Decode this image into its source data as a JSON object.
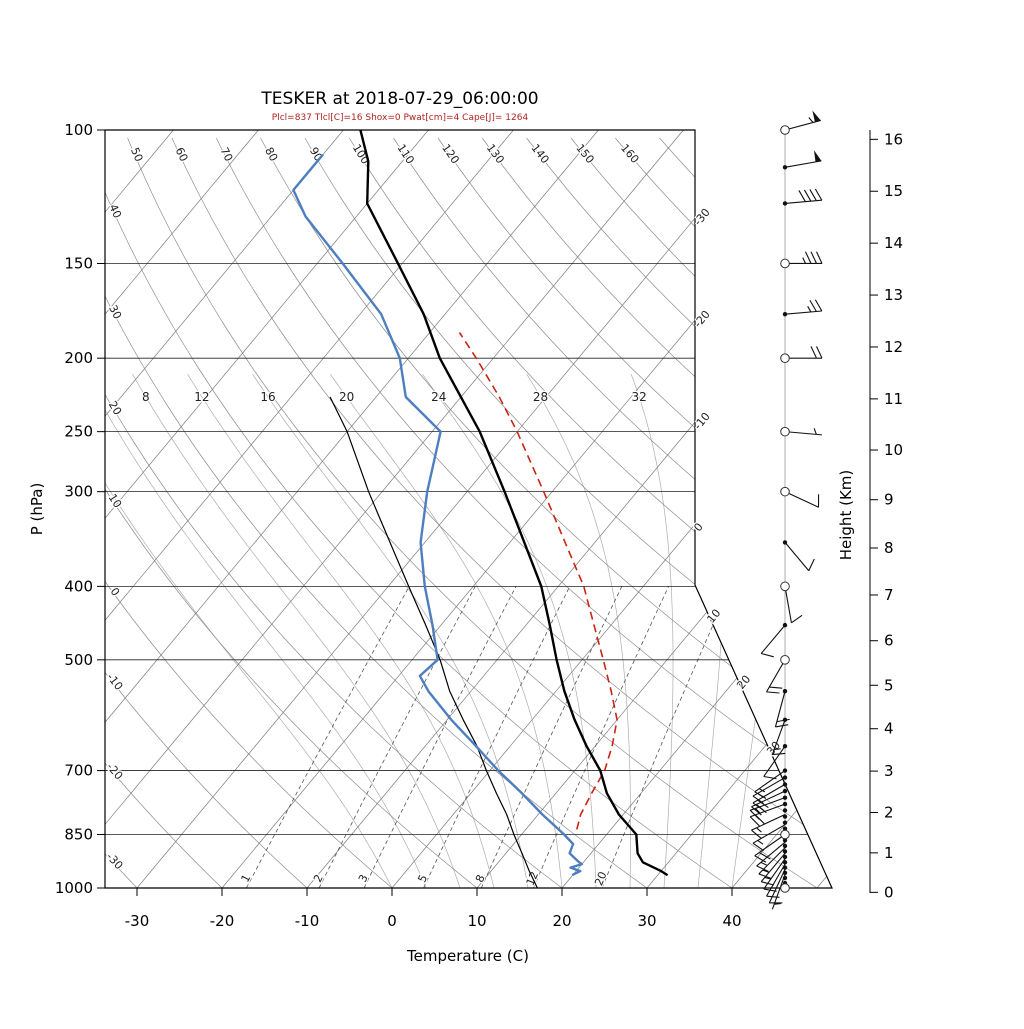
{
  "chart_data": {
    "type": "skewt-logp",
    "title": "TESKER at 2018-07-29_06:00:00",
    "subtitle": "Plcl=837 Tlcl[C]=16 Shox=0 Pwat[cm]=4 Cape[J]= 1264",
    "xlabel": "Temperature (C)",
    "ylabel": "P (hPa)",
    "y2label": "Height (Km)",
    "pressure_ticks": [
      100,
      150,
      200,
      250,
      300,
      400,
      500,
      700,
      850,
      1000
    ],
    "temperature_ticks": [
      -30,
      -20,
      -10,
      0,
      10,
      20,
      30,
      40
    ],
    "height_ticks": [
      0,
      1,
      2,
      3,
      4,
      5,
      6,
      7,
      8,
      9,
      10,
      11,
      12,
      13,
      14,
      15,
      16
    ],
    "background": {
      "isotherms": {
        "min": -110,
        "max": 50,
        "step": 10,
        "right_labels": [
          -30,
          -20,
          -10,
          0,
          10,
          20,
          30
        ]
      },
      "dry_adiabats": {
        "min": -30,
        "max": 180,
        "step": 10,
        "top_labels": [
          50,
          60,
          70,
          80,
          90,
          100,
          110,
          120,
          130,
          140,
          150,
          160
        ],
        "left_labels": [
          40,
          30,
          20,
          10,
          0,
          -10,
          -20,
          -30
        ]
      },
      "moist_adiabats": {
        "values": [
          0,
          4,
          8,
          12,
          16,
          20,
          24,
          28,
          32,
          36,
          40
        ],
        "labels": [
          8,
          12,
          16,
          20,
          24,
          28,
          32
        ],
        "label_pressure": 225
      },
      "mixing_ratio": {
        "values": [
          1,
          2,
          3,
          5,
          8,
          12,
          20
        ],
        "label_pressure": 985
      }
    },
    "profiles": {
      "temperature": [
        [
          960,
          31
        ],
        [
          950,
          30
        ],
        [
          925,
          27
        ],
        [
          900,
          25.5
        ],
        [
          850,
          23.5
        ],
        [
          800,
          19.5
        ],
        [
          750,
          16
        ],
        [
          700,
          13
        ],
        [
          650,
          9
        ],
        [
          600,
          5
        ],
        [
          550,
          1
        ],
        [
          500,
          -3
        ],
        [
          450,
          -7.2
        ],
        [
          400,
          -12
        ],
        [
          350,
          -18.3
        ],
        [
          300,
          -25.6
        ],
        [
          250,
          -34.4
        ],
        [
          200,
          -46.3
        ],
        [
          175,
          -52.5
        ],
        [
          150,
          -60.5
        ],
        [
          125,
          -70
        ],
        [
          110,
          -74
        ],
        [
          100,
          -78
        ]
      ],
      "dewpoint": [
        [
          960,
          20
        ],
        [
          950,
          20.5
        ],
        [
          940,
          19
        ],
        [
          930,
          20
        ],
        [
          925,
          19.5
        ],
        [
          900,
          17.5
        ],
        [
          875,
          17
        ],
        [
          850,
          15
        ],
        [
          800,
          10.5
        ],
        [
          750,
          6
        ],
        [
          700,
          1
        ],
        [
          650,
          -4
        ],
        [
          600,
          -9.5
        ],
        [
          550,
          -15
        ],
        [
          525,
          -17.5
        ],
        [
          500,
          -17
        ],
        [
          450,
          -21
        ],
        [
          400,
          -25.7
        ],
        [
          350,
          -30.5
        ],
        [
          300,
          -34.7
        ],
        [
          250,
          -39
        ],
        [
          225,
          -46.5
        ],
        [
          200,
          -51
        ],
        [
          175,
          -57.5
        ],
        [
          150,
          -67
        ],
        [
          130,
          -76
        ],
        [
          120,
          -80
        ],
        [
          108,
          -80
        ]
      ],
      "parcel": [
        [
          837,
          16
        ],
        [
          800,
          15
        ],
        [
          750,
          14.2
        ],
        [
          700,
          13.5
        ],
        [
          650,
          12
        ],
        [
          600,
          10
        ],
        [
          550,
          6.5
        ],
        [
          500,
          2.5
        ],
        [
          450,
          -2
        ],
        [
          400,
          -7
        ],
        [
          350,
          -13.5
        ],
        [
          300,
          -21
        ],
        [
          250,
          -30
        ],
        [
          225,
          -35.5
        ],
        [
          200,
          -42
        ],
        [
          185,
          -46.5
        ]
      ],
      "parcel_moist_adiabat": [
        [
          1000,
          17.1
        ],
        [
          950,
          14.5
        ],
        [
          900,
          11.9
        ],
        [
          850,
          9.1
        ],
        [
          800,
          6.3
        ],
        [
          750,
          3.0
        ],
        [
          700,
          -0.4
        ],
        [
          650,
          -3.9
        ],
        [
          600,
          -8.1
        ],
        [
          550,
          -12.5
        ],
        [
          500,
          -16.7
        ],
        [
          450,
          -21.8
        ],
        [
          400,
          -27.6
        ],
        [
          350,
          -34.1
        ],
        [
          300,
          -41.6
        ],
        [
          250,
          -50
        ],
        [
          225,
          -55.4
        ]
      ]
    },
    "wind": {
      "barbs": [
        [
          960,
          200,
          5
        ],
        [
          945,
          205,
          8
        ],
        [
          930,
          210,
          10
        ],
        [
          915,
          215,
          12
        ],
        [
          900,
          220,
          15
        ],
        [
          885,
          225,
          15
        ],
        [
          870,
          230,
          15
        ],
        [
          850,
          235,
          18
        ],
        [
          825,
          240,
          15
        ],
        [
          800,
          245,
          15
        ],
        [
          775,
          250,
          18
        ],
        [
          760,
          250,
          15
        ],
        [
          745,
          245,
          20
        ],
        [
          730,
          240,
          18
        ],
        [
          715,
          240,
          15
        ],
        [
          700,
          235,
          15
        ],
        [
          650,
          215,
          12
        ],
        [
          600,
          200,
          15
        ],
        [
          550,
          195,
          18
        ],
        [
          500,
          210,
          20
        ],
        [
          450,
          220,
          12
        ],
        [
          400,
          170,
          10
        ],
        [
          350,
          140,
          8
        ],
        [
          300,
          115,
          10
        ],
        [
          250,
          95,
          5
        ],
        [
          200,
          90,
          18
        ],
        [
          175,
          85,
          25
        ],
        [
          150,
          90,
          35
        ],
        [
          125,
          85,
          40
        ],
        [
          112,
          80,
          50
        ],
        [
          100,
          75,
          55
        ]
      ],
      "dot_levels": [
        1000,
        985,
        970,
        955,
        940,
        925,
        910,
        895,
        880,
        865,
        850,
        835,
        820,
        805,
        790,
        775,
        760,
        745,
        730,
        715,
        700,
        650,
        600,
        550,
        500,
        450,
        400,
        350,
        300,
        250,
        200,
        175,
        150,
        125,
        112,
        100
      ],
      "circle_levels": [
        100,
        150,
        200,
        250,
        300,
        400,
        500,
        850,
        1000
      ]
    },
    "colors": {
      "temperature": "#000000",
      "dewpoint": "#4d7ebf",
      "parcel": "#cc2211",
      "parcel_aux": "#000000",
      "subtitle": "#b22222",
      "isotherm": "#7a7a7a",
      "dry_adiabat": "#8c8c8c",
      "moist_adiabat": "#adadad",
      "mixing_ratio": "#555555"
    }
  }
}
